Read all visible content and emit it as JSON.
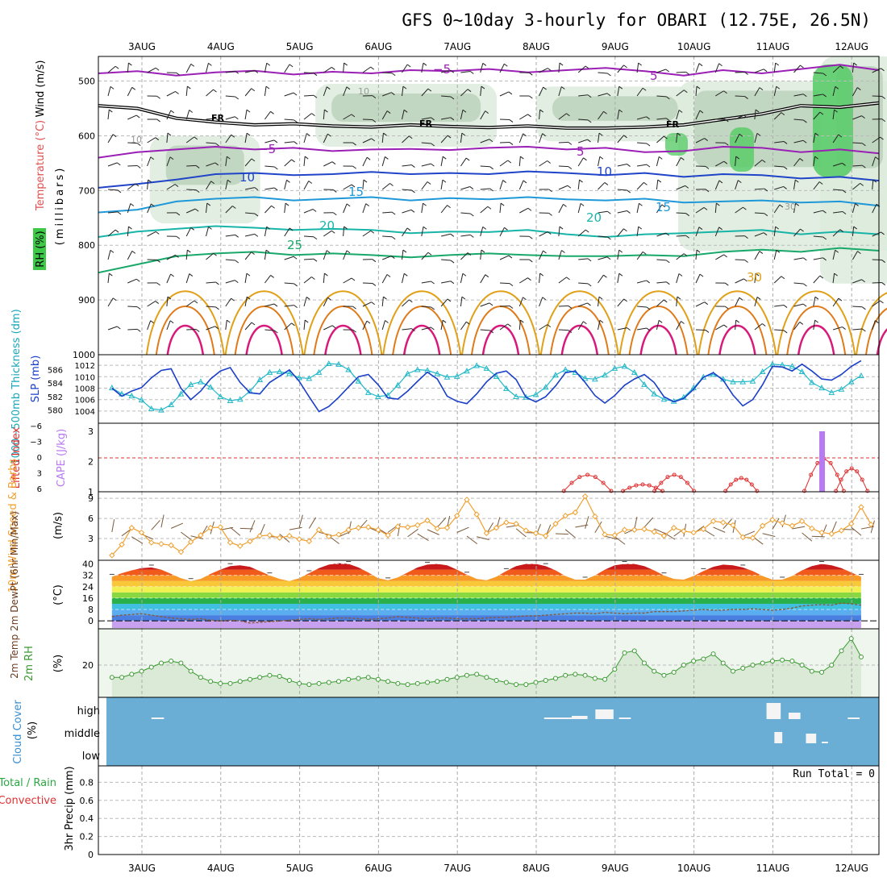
{
  "title": "GFS 0~10day 3-hourly for OBARI (12.75E, 26.5N)",
  "days": [
    "3AUG",
    "4AUG",
    "5AUG",
    "6AUG",
    "7AUG",
    "8AUG",
    "9AUG",
    "10AUG",
    "11AUG",
    "12AUG"
  ],
  "colors": {
    "purple": "#9a1fb5",
    "blue": "#1f44c8",
    "lightblue": "#1e98d8",
    "teal": "#17b5a8",
    "green": "#17a86a",
    "orange": "#e0a018",
    "darkorange": "#e07a18",
    "magenta": "#d8187a",
    "slp": "#1a3fc8",
    "thick": "#22b8c8",
    "cape": "#b87af0",
    "li": "#e03030",
    "wind10": "#f0a030",
    "rh": "#3a9a30",
    "cloud": "#6aaed6"
  },
  "chart_data": [
    {
      "type": "area",
      "name": "upper_air",
      "ylabel_lines": [
        "Wind (m/s)",
        "Temperature (°C)",
        "RH (%)"
      ],
      "axis_label": "(millibars)",
      "yticks": [
        500,
        600,
        700,
        800,
        900,
        1000
      ],
      "ylim": [
        455,
        1000
      ],
      "contour_labels": [
        "−5",
        "5",
        "FR",
        "FR",
        "FR",
        "−5",
        "5",
        "10",
        "10",
        "15",
        "15",
        "20",
        "20",
        "25",
        "30",
        "10",
        "10",
        "30"
      ],
      "isotherms": [
        {
          "label": "-5",
          "color": "purple",
          "y": [
            486,
            482,
            490,
            484,
            481,
            488,
            483,
            486,
            480,
            482,
            478,
            484,
            480,
            476,
            482,
            490,
            480,
            486,
            478,
            470,
            480
          ]
        },
        {
          "label": "FR",
          "color": "black",
          "y": [
            545,
            550,
            568,
            575,
            580,
            578,
            582,
            584,
            580,
            583,
            585,
            582,
            586,
            586,
            584,
            580,
            570,
            560,
            545,
            548,
            540
          ]
        },
        {
          "label": "5",
          "color": "purple",
          "y": [
            640,
            630,
            625,
            620,
            625,
            622,
            628,
            625,
            624,
            626,
            622,
            620,
            625,
            622,
            630,
            628,
            620,
            622,
            630,
            625,
            632
          ]
        },
        {
          "label": "10",
          "color": "blue",
          "y": [
            695,
            688,
            680,
            670,
            668,
            672,
            670,
            666,
            670,
            668,
            670,
            665,
            668,
            672,
            668,
            675,
            670,
            672,
            678,
            675,
            682
          ]
        },
        {
          "label": "15",
          "color": "lightblue",
          "y": [
            740,
            735,
            720,
            715,
            712,
            718,
            715,
            712,
            718,
            714,
            716,
            712,
            716,
            718,
            715,
            722,
            720,
            718,
            722,
            720,
            728
          ]
        },
        {
          "label": "20",
          "color": "teal",
          "y": [
            785,
            775,
            770,
            765,
            768,
            772,
            770,
            772,
            778,
            775,
            776,
            772,
            780,
            785,
            780,
            778,
            775,
            772,
            780,
            775,
            780
          ]
        },
        {
          "label": "25",
          "color": "green",
          "y": [
            850,
            835,
            820,
            815,
            812,
            818,
            815,
            818,
            822,
            818,
            815,
            818,
            820,
            820,
            818,
            820,
            812,
            808,
            812,
            805,
            810
          ]
        }
      ],
      "rh_zones": [
        {
          "x": [
            0.1,
            1.5
          ],
          "top": 600,
          "bottom": 760
        },
        {
          "x": [
            2.2,
            4.5
          ],
          "top": 505,
          "bottom": 620
        },
        {
          "x": [
            5.0,
            7.0
          ],
          "top": 510,
          "bottom": 610
        },
        {
          "x": [
            6.8,
            9.6
          ],
          "top": 500,
          "bottom": 810
        },
        {
          "x": [
            8.6,
            9.6
          ],
          "top": 455,
          "bottom": 870
        }
      ]
    },
    {
      "type": "line",
      "name": "slp_thickness",
      "ylabel_slp": "SLP (mb)",
      "ylabel_thick": "1000−500mb Thickness (dm)",
      "slp_ticks": [
        1004,
        1006,
        1008,
        1010,
        1012
      ],
      "thick_ticks": [
        580,
        582,
        584,
        586
      ],
      "slp": [
        1008,
        1006.6,
        1007.5,
        1008.1,
        1009.8,
        1011.1,
        1011.4,
        1008,
        1006,
        1007.5,
        1009.6,
        1011,
        1011.6,
        1009,
        1007.2,
        1007,
        1009,
        1010.1,
        1011.2,
        1009.2,
        1006.5,
        1003.9,
        1004.8,
        1006.4,
        1008.2,
        1010,
        1010.4,
        1008.6,
        1006.3,
        1006.1,
        1007.5,
        1009.2,
        1010.8,
        1009.6,
        1006.6,
        1005.7,
        1005.3,
        1007,
        1009.1,
        1010.6,
        1011,
        1009.5,
        1006.4,
        1005.6,
        1006.5,
        1008.4,
        1010.7,
        1011,
        1009,
        1006.7,
        1005.4,
        1006.7,
        1008.5,
        1009.6,
        1010.4,
        1009,
        1006.5,
        1005.6,
        1006.2,
        1007.8,
        1009.9,
        1010.7,
        1009.4,
        1006.8,
        1004.9,
        1006,
        1008.6,
        1011.8,
        1011.7,
        1011,
        1012.2,
        1011,
        1009.6,
        1009.4,
        1010.4,
        1011.8,
        1012.8
      ],
      "thickness": [
        583.3,
        582.4,
        582.1,
        581.5,
        580.2,
        580,
        580.8,
        582.4,
        583.8,
        584.2,
        583.4,
        582,
        581.4,
        581.6,
        582.8,
        584.5,
        585.6,
        585.7,
        585.4,
        584.8,
        584.7,
        585.6,
        586.9,
        586.8,
        586,
        584.3,
        582.6,
        582,
        582.2,
        583.7,
        585.4,
        586,
        585.9,
        585.4,
        584.9,
        585,
        585.8,
        586.6,
        586.2,
        585,
        583.2,
        582,
        581.9,
        582.3,
        583.4,
        585.2,
        586,
        585.6,
        584.7,
        584.6,
        585.2,
        586.2,
        586.5,
        585.6,
        583.8,
        582.4,
        581.6,
        581.3,
        581.9,
        583.3,
        584.9,
        585.3,
        584.6,
        584.2,
        584.2,
        584.3,
        585.7,
        586.8,
        586.7,
        586.5,
        585.7,
        584.1,
        583.3,
        582.6,
        583.1,
        584.2,
        585.1
      ]
    },
    {
      "type": "bar",
      "name": "li_cape",
      "ylabel_li": "Lifted Index",
      "ylabel_cape": "CAPE (J/kg)",
      "li_ticks": [
        "−6",
        "−3",
        "0",
        "3",
        "6"
      ],
      "cape_ticks": [
        1,
        2,
        3
      ],
      "li_segments": [
        {
          "x": [
            5.35,
            5.95
          ],
          "peak": 1.5
        },
        {
          "x": [
            6.1,
            6.6
          ],
          "peak": 1.2
        },
        {
          "x": [
            6.5,
            7.0
          ],
          "peak": 1.5
        },
        {
          "x": [
            7.4,
            7.8
          ],
          "peak": 1.4
        },
        {
          "x": [
            8.4,
            8.9
          ],
          "peak": 2.0
        },
        {
          "x": [
            8.8,
            9.2
          ],
          "peak": 1.7
        }
      ],
      "cape_bars": [
        {
          "x": 8.62,
          "value": 3.0
        }
      ]
    },
    {
      "type": "line",
      "name": "wind10m",
      "ylabel": "10m Wind Speed & Barbs",
      "unit": "(m/s)",
      "yticks": [
        3,
        6,
        9
      ],
      "ylim": [
        0,
        9.5
      ],
      "speed": [
        0.5,
        2.1,
        4.6,
        3.9,
        2.4,
        2.2,
        2,
        1,
        2.5,
        3.5,
        4.6,
        4.7,
        2.4,
        1.9,
        2.6,
        3.4,
        3.5,
        3.1,
        3.4,
        2.9,
        2.6,
        4.3,
        3.3,
        3.6,
        4.3,
        4.6,
        4.7,
        4.3,
        3.5,
        4.8,
        4.7,
        5,
        5.7,
        4.5,
        4.6,
        6.4,
        8.8,
        6.6,
        3.8,
        4.6,
        5.4,
        5.2,
        4.2,
        3.8,
        3.4,
        5.2,
        6.4,
        6.9,
        9.3,
        6.3,
        3.6,
        3.5,
        4.3,
        4.3,
        4.4,
        4,
        3.4,
        4.6,
        4.1,
        3.9,
        4.4,
        5.6,
        5.4,
        5,
        3.2,
        3.1,
        4.9,
        5.8,
        5.3,
        4.9,
        5.6,
        4.5,
        3.9,
        3.7,
        4.2,
        5.2,
        7.7,
        5.1
      ]
    },
    {
      "type": "area",
      "name": "temp2m",
      "ylabel": "2m Temp 2m DewPt (6hr Min/Max)",
      "unit": "(°C)",
      "yticks": [
        0,
        8,
        16,
        24,
        32,
        40
      ],
      "ylim": [
        -5,
        42
      ],
      "temp": [
        31,
        33.5,
        35.5,
        37,
        37.5,
        36,
        33,
        30,
        28,
        29.5,
        33,
        36,
        38.5,
        39,
        38,
        35,
        32,
        29.5,
        28,
        30,
        33.5,
        37,
        39.5,
        40.5,
        40,
        37.5,
        34,
        30,
        28.5,
        30.5,
        34,
        37.5,
        39.5,
        40,
        39,
        36,
        32.5,
        29.5,
        28.5,
        31,
        35,
        38.5,
        40,
        40,
        38.5,
        35.5,
        31.5,
        29,
        29,
        32,
        36,
        39,
        40,
        40,
        38.5,
        35.5,
        32,
        29.5,
        29,
        31.5,
        35,
        38,
        39.5,
        39,
        37.5,
        35,
        31.5,
        29,
        29,
        31.5,
        35.5,
        38.5,
        40,
        39,
        37,
        34,
        31
      ],
      "dew": [
        3,
        4,
        4.5,
        5,
        4,
        3,
        2,
        1.5,
        1,
        1.5,
        0.5,
        0,
        0.5,
        0,
        -1.5,
        -1,
        -0.5,
        0,
        0.5,
        1,
        1.5,
        1,
        1.5,
        2,
        2,
        1.5,
        1,
        1.5,
        2,
        3,
        2.5,
        2,
        1.5,
        2,
        2,
        1.5,
        1.5,
        1.5,
        2,
        2.5,
        2.5,
        3,
        3.5,
        3.5,
        4,
        4.5,
        5,
        5.5,
        5.5,
        5,
        6,
        5.5,
        5,
        5.5,
        5.5,
        6.5,
        6.5,
        6.5,
        7,
        7.5,
        8,
        7.5,
        7.5,
        8,
        8,
        8.5,
        8,
        7.5,
        8,
        9,
        10.5,
        11,
        11.5,
        11,
        12.5,
        12,
        11
      ]
    },
    {
      "type": "line",
      "name": "rh2m",
      "ylabel": "2m RH",
      "unit": "(%)",
      "yticks": [
        20
      ],
      "ylim": [
        5,
        37
      ],
      "rh": [
        14,
        14,
        15.5,
        17,
        19,
        21,
        22,
        21,
        17,
        14,
        12,
        11,
        11,
        12,
        13,
        14,
        15,
        14.5,
        12.5,
        11,
        10.5,
        11,
        11.5,
        12,
        13,
        13.5,
        14,
        13,
        12,
        11,
        10.5,
        11,
        11.5,
        12,
        13,
        14,
        15,
        15.5,
        14,
        12.5,
        11.5,
        10.5,
        10.5,
        11.5,
        12.5,
        13.5,
        15,
        15.5,
        15,
        13.5,
        13,
        18,
        26,
        27,
        21,
        17,
        15,
        16.5,
        20,
        22,
        23,
        25.5,
        21,
        17,
        18.5,
        20,
        21,
        22,
        22.5,
        22,
        20,
        17,
        16.5,
        20,
        27,
        33,
        24
      ]
    },
    {
      "type": "bar",
      "name": "cloud",
      "ylabel": "Cloud Cover",
      "unit": "(%)",
      "levels": [
        "high",
        "middle",
        "low"
      ],
      "high": [
        [
          0.12,
          0.28,
          10
        ],
        [
          5.1,
          5.45,
          10
        ],
        [
          5.45,
          5.65,
          20
        ],
        [
          5.75,
          5.98,
          60
        ],
        [
          6.05,
          6.2,
          10
        ],
        [
          7.92,
          8.1,
          100
        ],
        [
          8.2,
          8.35,
          40
        ],
        [
          8.95,
          9.1,
          10
        ]
      ],
      "middle": [
        [
          8.02,
          8.12,
          70
        ],
        [
          8.42,
          8.55,
          60
        ],
        [
          8.62,
          8.7,
          10
        ]
      ]
    },
    {
      "type": "bar",
      "name": "precip",
      "ylabel": "3hr Precip (mm)",
      "legend_total": "Total / Rain",
      "legend_conv": "Convective",
      "run_total": "Run Total = 0",
      "yticks": [
        "0",
        "0.2",
        "0.4",
        "0.6",
        "0.8"
      ],
      "ylim": [
        0,
        1
      ],
      "values": []
    }
  ]
}
